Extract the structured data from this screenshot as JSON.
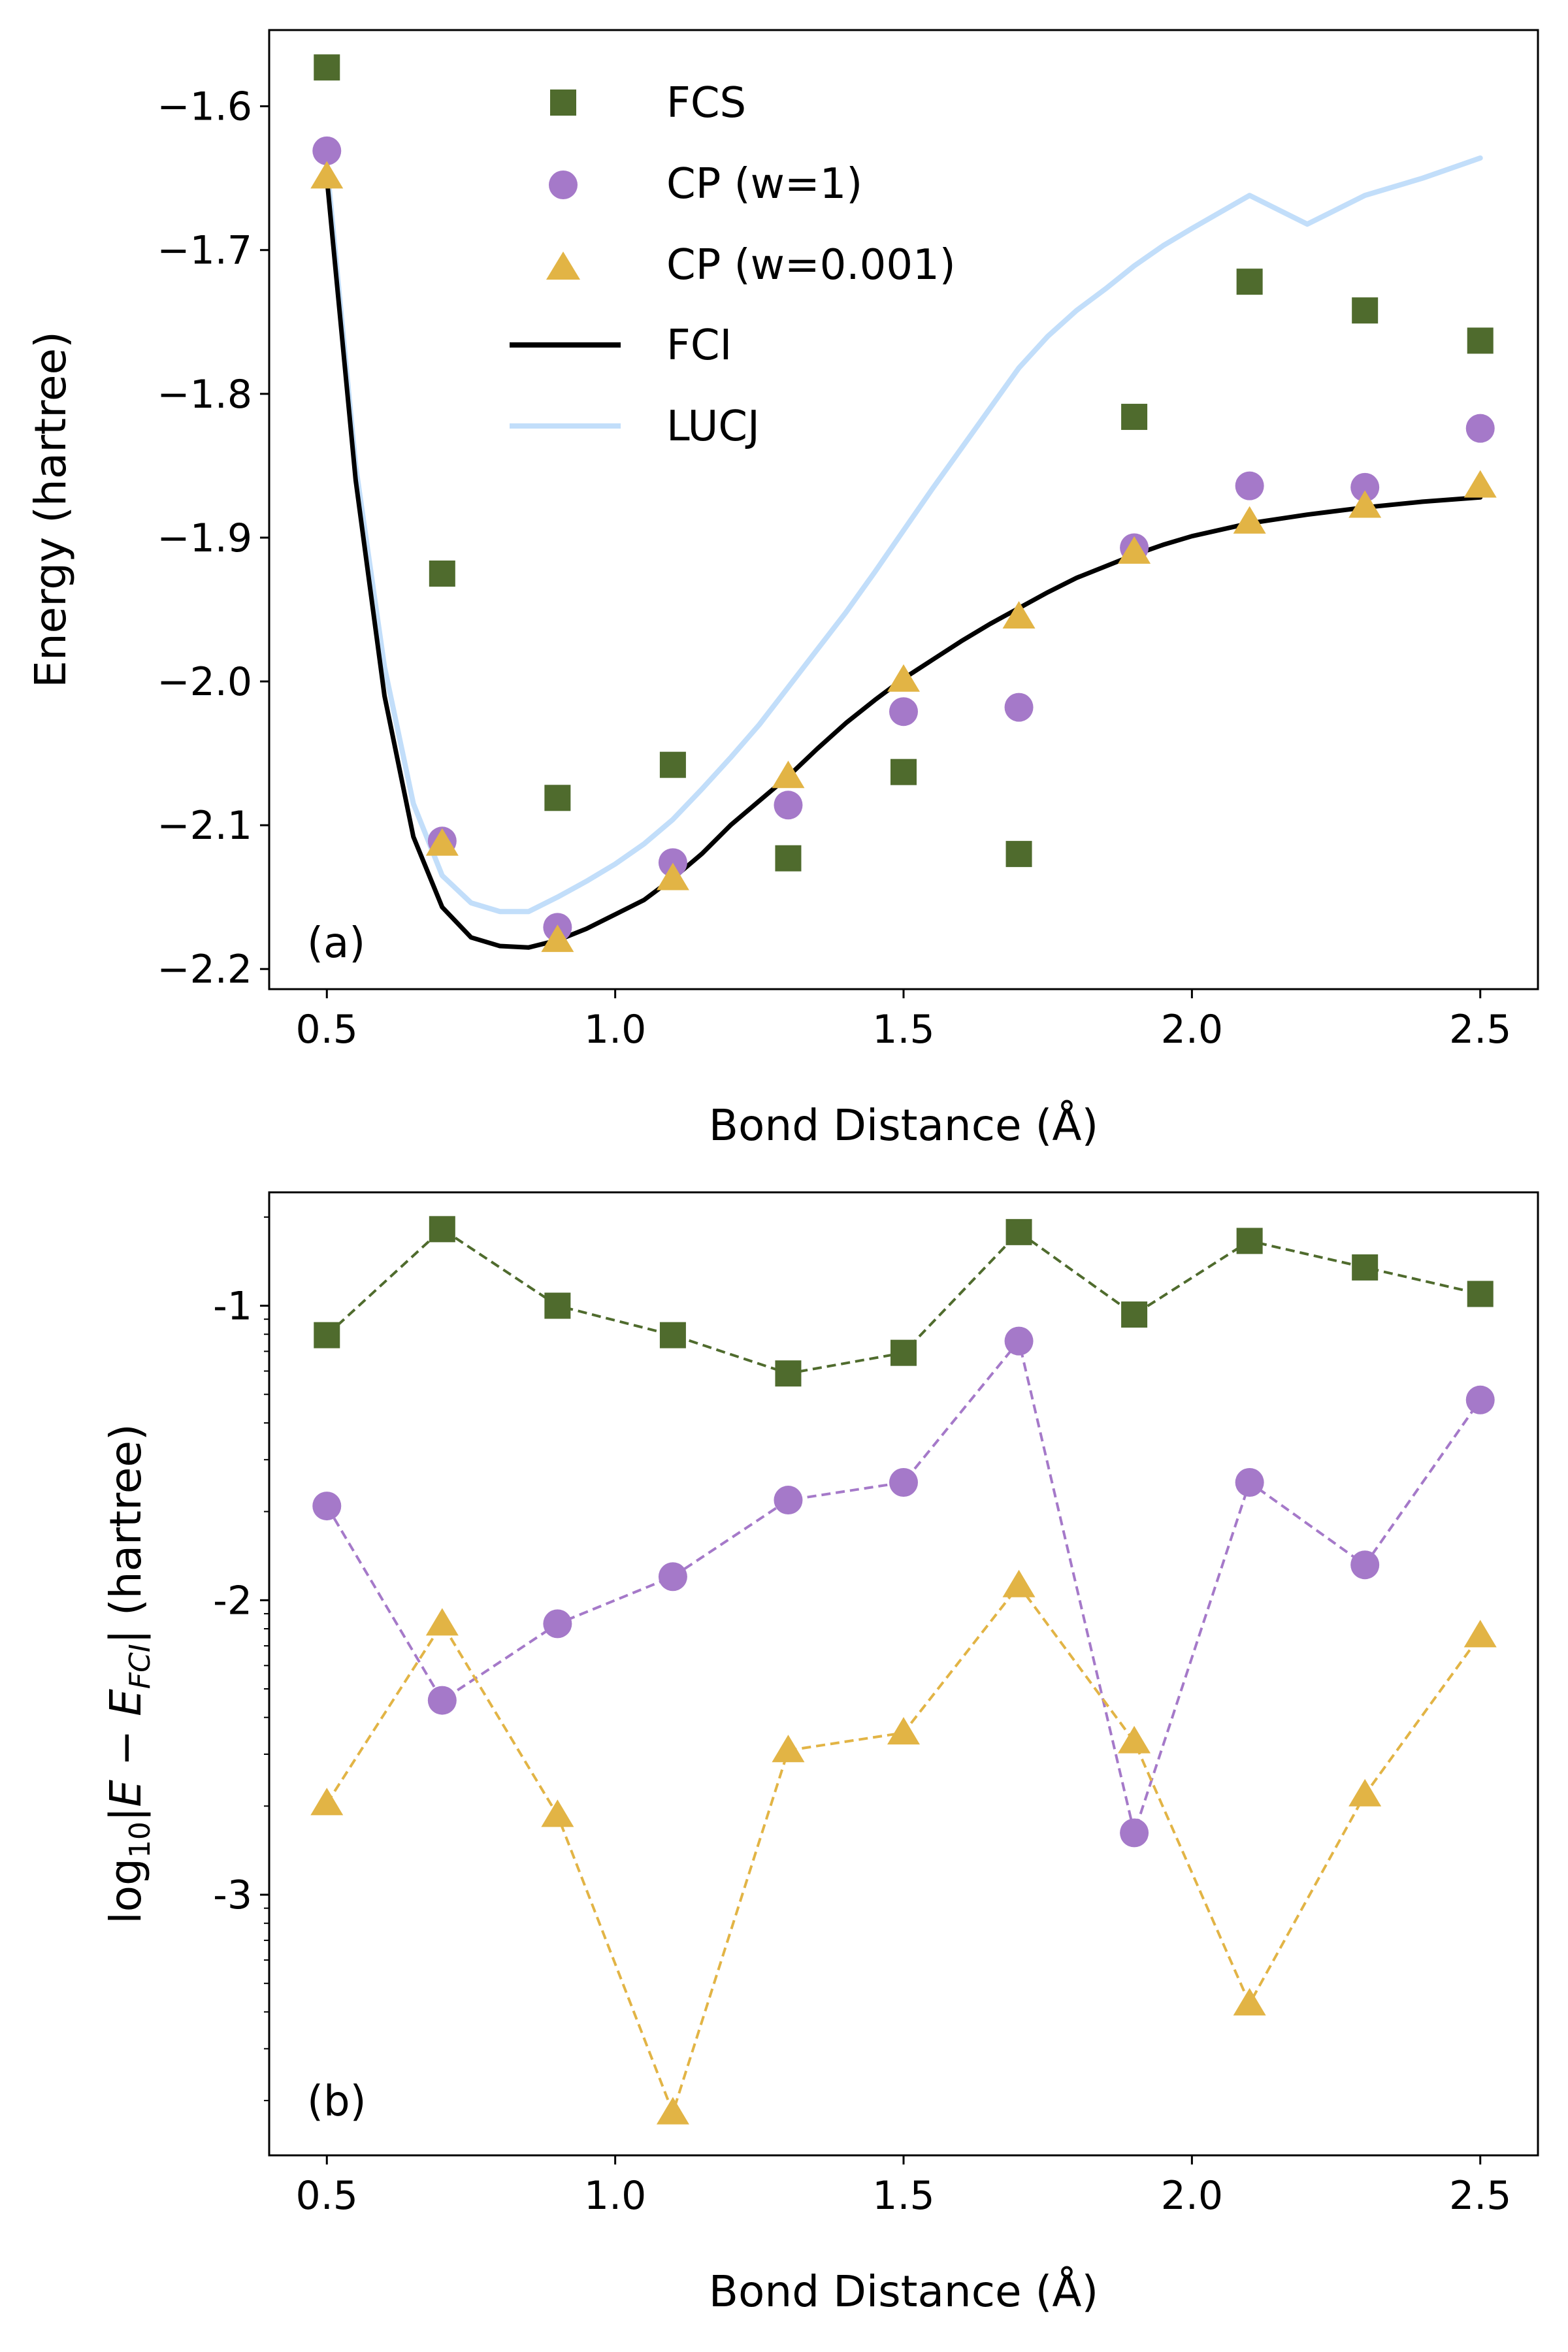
{
  "colors": {
    "fcs": "#4f6b2d",
    "cp_w1": "#a579c9",
    "cp_w0001": "#e2b445",
    "fci": "#000000",
    "lucj": "#c2defa"
  },
  "chart_data": [
    {
      "type": "line+scatter",
      "panel_label": "(a)",
      "xlabel": "Bond Distance (Å)",
      "ylabel": "Energy (hartree)",
      "xlim": [
        0.4,
        2.6
      ],
      "ylim": [
        -2.214,
        -1.547
      ],
      "xticks": [
        0.5,
        1.0,
        1.5,
        2.0,
        2.5
      ],
      "xtick_labels": [
        "0.5",
        "1.0",
        "1.5",
        "2.0",
        "2.5"
      ],
      "yticks": [
        -1.6,
        -1.7,
        -1.8,
        -1.9,
        -2.0,
        -2.1,
        -2.2
      ],
      "ytick_labels": [
        "−1.6",
        "−1.7",
        "−1.8",
        "−1.9",
        "−2.0",
        "−2.1",
        "−2.2"
      ],
      "legend": {
        "position": "top-center",
        "entries": [
          "FCS",
          "CP (w=1)",
          "CP (w=0.001)",
          "FCI",
          "LUCJ"
        ]
      },
      "scatter_series": [
        {
          "name": "FCS",
          "marker": "square",
          "color_key": "fcs",
          "x": [
            0.5,
            0.7,
            0.9,
            1.1,
            1.3,
            1.5,
            1.7,
            1.9,
            2.1,
            2.3,
            2.5
          ],
          "y": [
            -1.573,
            -1.925,
            -2.081,
            -2.058,
            -2.123,
            -2.063,
            -2.12,
            -1.816,
            -1.722,
            -1.742,
            -1.763
          ]
        },
        {
          "name": "CP (w=1)",
          "marker": "circle",
          "color_key": "cp_w1",
          "x": [
            0.5,
            0.7,
            0.9,
            1.1,
            1.3,
            1.5,
            1.7,
            1.9,
            2.1,
            2.3,
            2.5
          ],
          "y": [
            -1.631,
            -2.111,
            -2.171,
            -2.126,
            -2.086,
            -2.021,
            -2.018,
            -1.907,
            -1.864,
            -1.865,
            -1.824
          ]
        },
        {
          "name": "CP (w=0.001)",
          "marker": "triangle",
          "color_key": "cp_w0001",
          "x": [
            0.5,
            0.7,
            0.9,
            1.1,
            1.3,
            1.5,
            1.7,
            1.9,
            2.1,
            2.3,
            2.5
          ],
          "y": [
            -1.649,
            -2.113,
            -2.18,
            -2.137,
            -2.066,
            -1.999,
            -1.955,
            -1.91,
            -1.889,
            -1.878,
            -1.864
          ]
        }
      ],
      "line_series": [
        {
          "name": "FCI",
          "color_key": "fci",
          "x": [
            0.5,
            0.55,
            0.6,
            0.65,
            0.7,
            0.75,
            0.8,
            0.85,
            0.9,
            0.95,
            1.0,
            1.05,
            1.1,
            1.15,
            1.2,
            1.25,
            1.3,
            1.35,
            1.4,
            1.45,
            1.5,
            1.55,
            1.6,
            1.65,
            1.7,
            1.75,
            1.8,
            1.85,
            1.9,
            1.95,
            2.0,
            2.1,
            2.2,
            2.3,
            2.4,
            2.5
          ],
          "y": [
            -1.65,
            -1.86,
            -2.01,
            -2.108,
            -2.157,
            -2.178,
            -2.184,
            -2.185,
            -2.18,
            -2.172,
            -2.162,
            -2.152,
            -2.137,
            -2.12,
            -2.1,
            -2.083,
            -2.066,
            -2.047,
            -2.029,
            -2.013,
            -1.998,
            -1.985,
            -1.972,
            -1.96,
            -1.949,
            -1.938,
            -1.928,
            -1.92,
            -1.912,
            -1.905,
            -1.899,
            -1.89,
            -1.884,
            -1.879,
            -1.875,
            -1.872
          ]
        },
        {
          "name": "LUCJ",
          "color_key": "lucj",
          "x": [
            0.5,
            0.55,
            0.6,
            0.65,
            0.7,
            0.75,
            0.8,
            0.85,
            0.9,
            0.95,
            1.0,
            1.05,
            1.1,
            1.15,
            1.2,
            1.25,
            1.3,
            1.35,
            1.4,
            1.45,
            1.5,
            1.55,
            1.6,
            1.65,
            1.7,
            1.75,
            1.8,
            1.85,
            1.9,
            1.95,
            2.0,
            2.1,
            2.2,
            2.3,
            2.4,
            2.5
          ],
          "y": [
            -1.64,
            -1.85,
            -1.99,
            -2.085,
            -2.135,
            -2.154,
            -2.16,
            -2.16,
            -2.15,
            -2.139,
            -2.127,
            -2.113,
            -2.096,
            -2.075,
            -2.053,
            -2.03,
            -2.004,
            -1.978,
            -1.952,
            -1.924,
            -1.895,
            -1.866,
            -1.838,
            -1.81,
            -1.782,
            -1.76,
            -1.742,
            -1.727,
            -1.711,
            -1.697,
            -1.685,
            -1.662,
            -1.682,
            -1.662,
            -1.65,
            -1.636
          ]
        }
      ]
    },
    {
      "type": "line+scatter",
      "panel_label": "(b)",
      "xlabel": "Bond Distance (Å)",
      "ylabel": "log10|E − E_FCI| (hartree)",
      "ylabel_parts": {
        "log": "log",
        "base": "10",
        "left": "|",
        "e": "E",
        "minus": " − ",
        "efci": "E",
        "sub_fci": "FCI",
        "right": "| (hartree)"
      },
      "xlim": [
        0.4,
        2.6
      ],
      "ylim": [
        -3.885,
        -0.615
      ],
      "xticks": [
        0.5,
        1.0,
        1.5,
        2.0,
        2.5
      ],
      "xtick_labels": [
        "0.5",
        "1.0",
        "1.5",
        "2.0",
        "2.5"
      ],
      "yticks": [
        -1,
        -2,
        -3
      ],
      "ytick_labels": [
        "-1",
        "-2",
        "-3"
      ],
      "series": [
        {
          "name": "FCS",
          "marker": "square",
          "color_key": "fcs",
          "x": [
            0.5,
            0.7,
            0.9,
            1.1,
            1.3,
            1.5,
            1.7,
            1.9,
            2.1,
            2.3,
            2.5
          ],
          "y": [
            -1.1,
            -0.74,
            -1.0,
            -1.1,
            -1.23,
            -1.16,
            -0.75,
            -1.03,
            -0.78,
            -0.87,
            -0.96
          ]
        },
        {
          "name": "CP (w=1)",
          "marker": "circle",
          "color_key": "cp_w1",
          "x": [
            0.5,
            0.7,
            0.9,
            1.1,
            1.3,
            1.5,
            1.7,
            1.9,
            2.1,
            2.3,
            2.5
          ],
          "y": [
            -1.68,
            -2.34,
            -2.08,
            -1.92,
            -1.66,
            -1.6,
            -1.12,
            -2.79,
            -1.6,
            -1.88,
            -1.32
          ]
        },
        {
          "name": "CP (w=0.001)",
          "marker": "triangle",
          "color_key": "cp_w0001",
          "x": [
            0.5,
            0.7,
            0.9,
            1.1,
            1.3,
            1.5,
            1.7,
            1.9,
            2.1,
            2.3,
            2.5
          ],
          "y": [
            -2.69,
            -2.08,
            -2.73,
            -3.74,
            -2.51,
            -2.45,
            -1.95,
            -2.48,
            -3.37,
            -2.66,
            -2.12
          ]
        }
      ]
    }
  ]
}
